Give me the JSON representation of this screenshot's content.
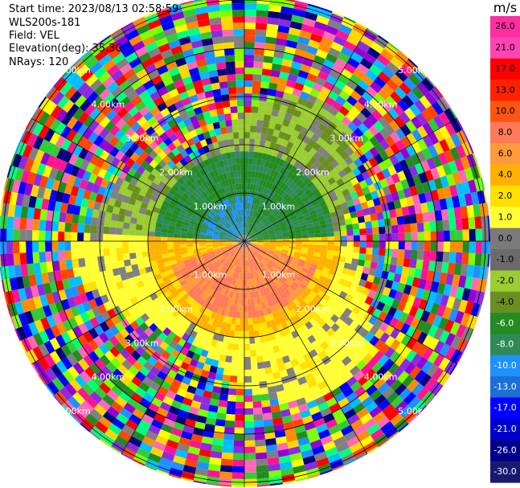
{
  "header": {
    "start_time": "Start time: 2023/08/13 02:58:59",
    "instrument": "WLS200s-181",
    "field": "Field: VEL",
    "elevation": "Elevation(deg): 35.30",
    "nrays": "NRays: 120"
  },
  "range_rings": {
    "labels": [
      "1.00km",
      "2.00km",
      "3.00km",
      "4.00km",
      "5.00km"
    ]
  },
  "colorbar": {
    "unit": "m/s",
    "ticks": [
      "26.0",
      "21.0",
      "17.0",
      "13.0",
      "10.0",
      "8.0",
      "6.0",
      "4.0",
      "2.0",
      "1.0",
      "0.0",
      "-1.0",
      "-2.0",
      "-4.0",
      "-6.0",
      "-8.0",
      "-10.0",
      "-13.0",
      "-17.0",
      "-21.0",
      "-26.0",
      "-30.0"
    ],
    "colors": [
      "#ff2ea0",
      "#ff44b4",
      "#ff0000",
      "#ff2200",
      "#ff5510",
      "#ff7a5a",
      "#ff9a3c",
      "#ffb000",
      "#ffe000",
      "#ffff33",
      "#7a7a7a",
      "#6a6a6a",
      "#9acd32",
      "#6b8e23",
      "#228b22",
      "#2e8b57",
      "#1e90ff",
      "#1c6fd6",
      "#0000ff",
      "#0000cd",
      "#00008b",
      "#191970"
    ]
  }
}
